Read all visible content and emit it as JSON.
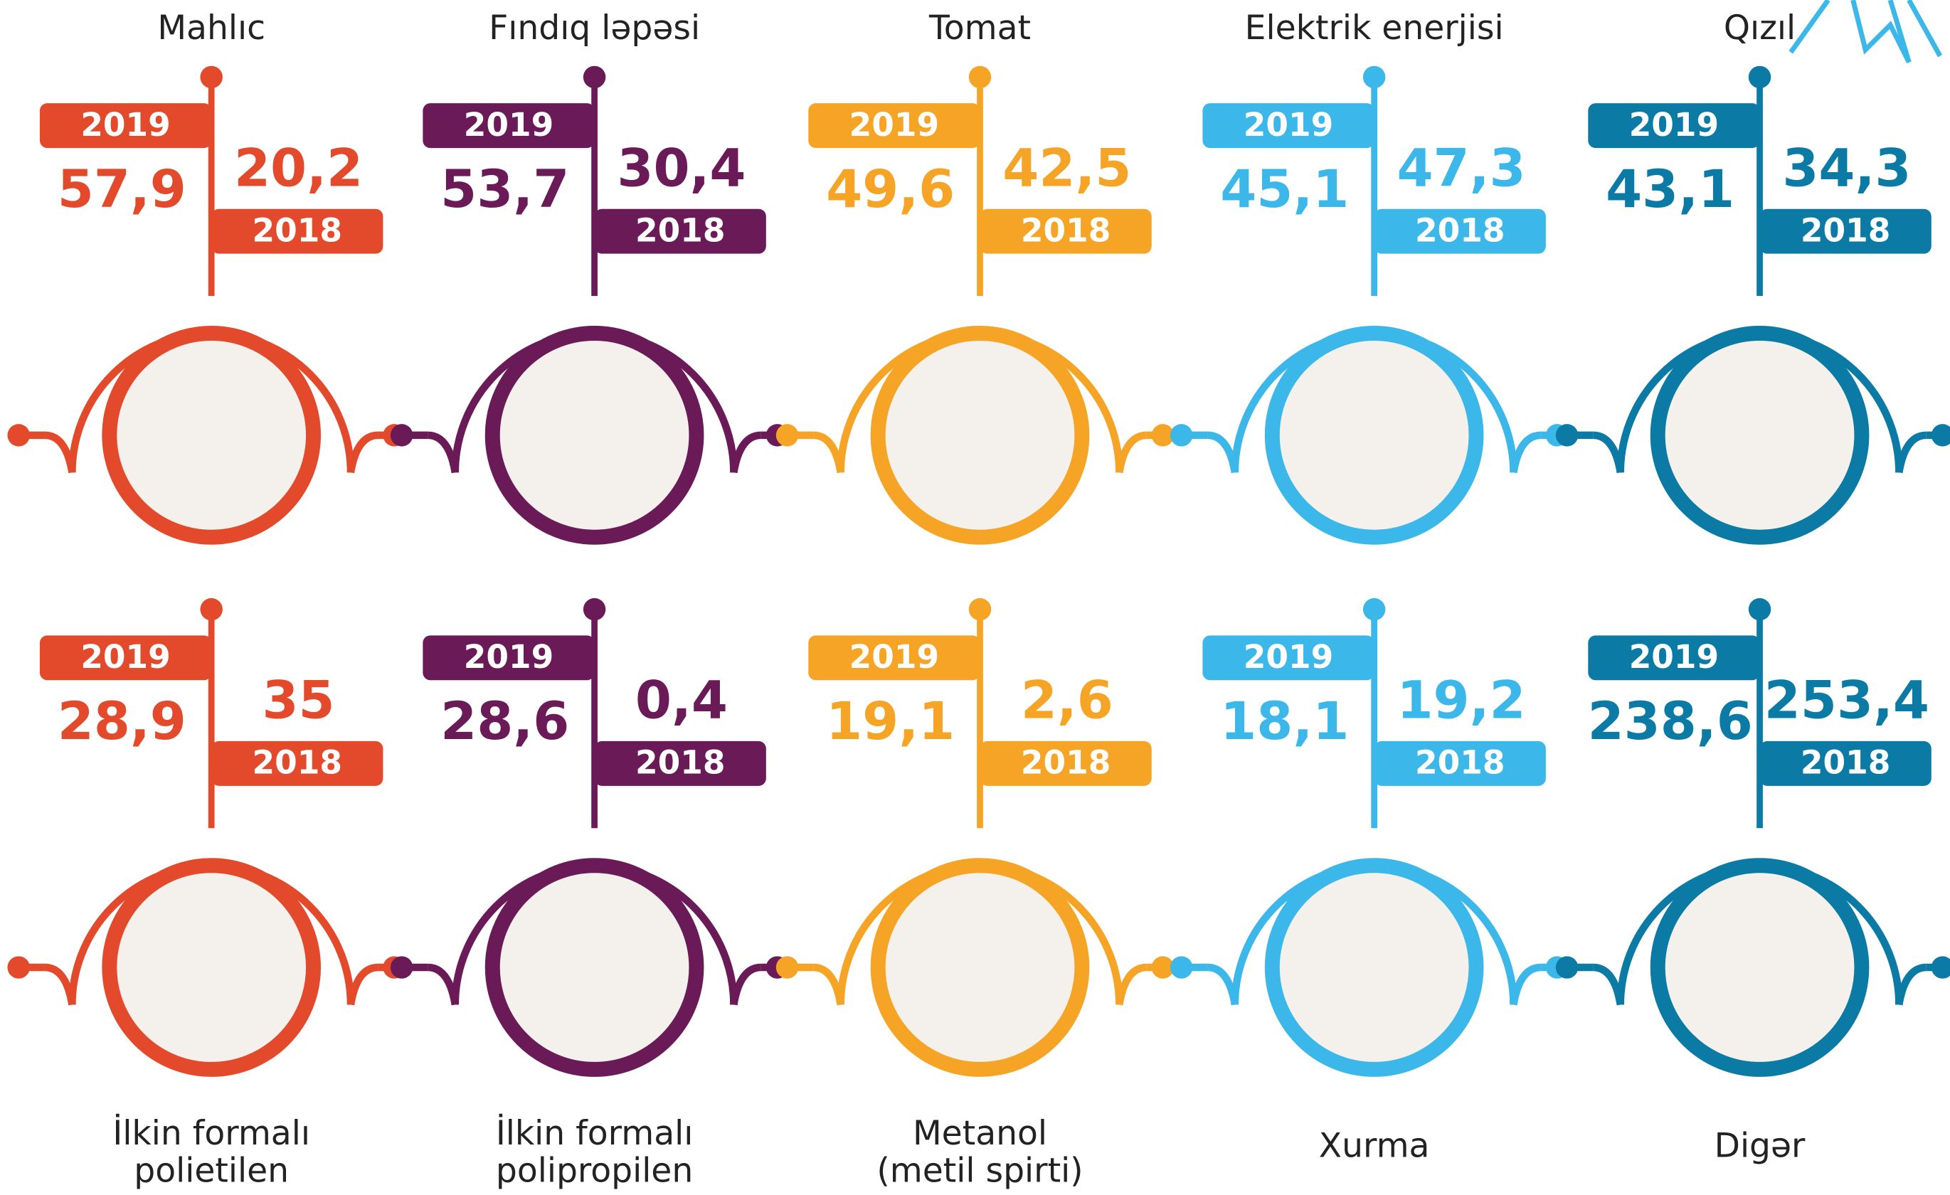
{
  "items": [
    {
      "name": [
        "Mahlıc"
      ],
      "color": "#e24a2b",
      "y2019": {
        "label": "2019",
        "value": "57,9"
      },
      "y2018": {
        "label": "2018",
        "value": "20,2"
      }
    },
    {
      "name": [
        "Fındıq ləpəsi"
      ],
      "color": "#6a1a56",
      "y2019": {
        "label": "2019",
        "value": "53,7"
      },
      "y2018": {
        "label": "2018",
        "value": "30,4"
      }
    },
    {
      "name": [
        "Tomat"
      ],
      "color": "#f5a425",
      "y2019": {
        "label": "2019",
        "value": "49,6"
      },
      "y2018": {
        "label": "2018",
        "value": "42,5"
      }
    },
    {
      "name": [
        "Elektrik enerjisi"
      ],
      "color": "#3cb7ea",
      "y2019": {
        "label": "2019",
        "value": "45,1"
      },
      "y2018": {
        "label": "2018",
        "value": "47,3"
      }
    },
    {
      "name": [
        "Qızıl"
      ],
      "color": "#0b7ba6",
      "y2019": {
        "label": "2019",
        "value": "43,1"
      },
      "y2018": {
        "label": "2018",
        "value": "34,3"
      }
    },
    {
      "name": [
        "İlkin formalı",
        "polietilen"
      ],
      "color": "#e24a2b",
      "y2019": {
        "label": "2019",
        "value": "28,9"
      },
      "y2018": {
        "label": "2018",
        "value": "35"
      }
    },
    {
      "name": [
        "İlkin formalı",
        "polipropilen"
      ],
      "color": "#6a1a56",
      "y2019": {
        "label": "2019",
        "value": "28,6"
      },
      "y2018": {
        "label": "2018",
        "value": "0,4"
      }
    },
    {
      "name": [
        "Metanol",
        "(metil spirti)"
      ],
      "color": "#f5a425",
      "y2019": {
        "label": "2019",
        "value": "19,1"
      },
      "y2018": {
        "label": "2018",
        "value": "2,6"
      }
    },
    {
      "name": [
        "Xurma"
      ],
      "color": "#3cb7ea",
      "y2019": {
        "label": "2019",
        "value": "18,1"
      },
      "y2018": {
        "label": "2018",
        "value": "19,2"
      }
    },
    {
      "name": [
        "Digər"
      ],
      "color": "#0b7ba6",
      "y2019": {
        "label": "2019",
        "value": "238,6"
      },
      "y2018": {
        "label": "2018",
        "value": "253,4"
      }
    }
  ]
}
